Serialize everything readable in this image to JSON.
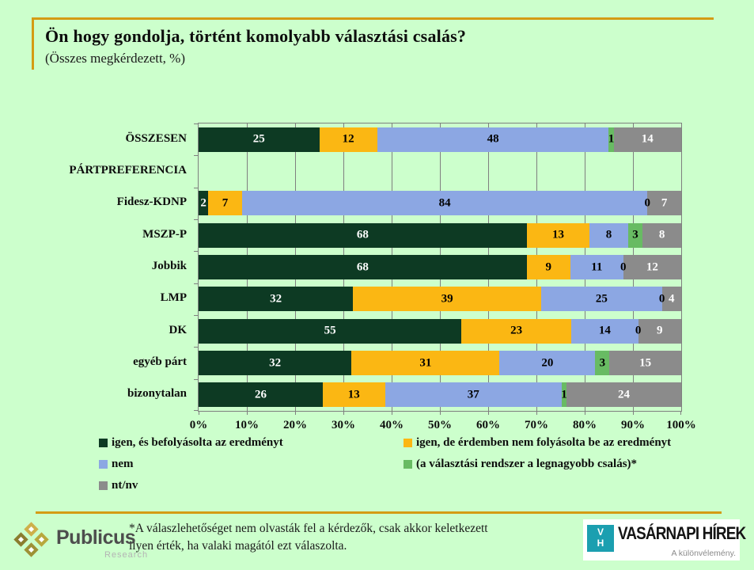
{
  "slide": {
    "title": "Ön hogy gondolja, történt komolyabb választási csalás?",
    "subtitle": "(Összes megkérdezett, %)",
    "accent_color": "#d49c14",
    "background_color": "#ccffcc"
  },
  "chart_data": {
    "type": "bar",
    "orientation": "horizontal-stacked",
    "title": "Ön hogy gondolja, történt komolyabb választási csalás?",
    "unit": "%",
    "categories": [
      "ÖSSZESEN",
      "PÁRTPREFERENCIA",
      "Fidesz-KDNP",
      "MSZP-P",
      "Jobbik",
      "LMP",
      "DK",
      "egyéb párt",
      "bizonytalan"
    ],
    "series": [
      {
        "name": "igen, és befolyásolta az eredményt",
        "color": "#0d3a23",
        "text_color": "#ffffff",
        "values": [
          25,
          null,
          2,
          68,
          68,
          32,
          55,
          32,
          26
        ]
      },
      {
        "name": "igen, de érdemben nem folyásolta be az eredményt",
        "color": "#fbb713",
        "text_color": "#000000",
        "values": [
          12,
          null,
          7,
          13,
          9,
          39,
          23,
          31,
          13
        ]
      },
      {
        "name": "nem",
        "color": "#8ca7e3",
        "text_color": "#000000",
        "values": [
          48,
          null,
          84,
          8,
          11,
          25,
          14,
          20,
          37
        ]
      },
      {
        "name": "(a választási rendszer a legnagyobb csalás)*",
        "color": "#68bb63",
        "text_color": "#000000",
        "values": [
          1,
          null,
          0,
          3,
          0,
          0,
          0,
          3,
          1
        ]
      },
      {
        "name": "nt/nv",
        "color": "#8b8b8b",
        "text_color": "#ffffff",
        "values": [
          14,
          null,
          7,
          8,
          12,
          4,
          9,
          15,
          24
        ]
      }
    ],
    "x_axis": {
      "min": 0,
      "max": 100,
      "ticks": [
        "0%",
        "10%",
        "20%",
        "30%",
        "40%",
        "50%",
        "60%",
        "70%",
        "80%",
        "90%",
        "100%"
      ]
    },
    "grid": true,
    "legend_position": "bottom"
  },
  "footnote": {
    "line1": "*A válaszlehetőséget nem olvasták fel a kérdezők, csak akkor keletkezett",
    "line2": "ilyen érték, ha valaki magától ezt válaszolta."
  },
  "logos": {
    "publicus": {
      "name": "Publicus",
      "sub": "Research",
      "diamond_colors": [
        "#cdb04a",
        "#8a7d2e",
        "#b7a83c",
        "#9d9135"
      ]
    },
    "vh": {
      "initial_top": "V",
      "initial_bottom": "H",
      "square_color": "#1b9fb0",
      "title": "VASÁRNAPI HÍREK",
      "tagline": "A különvélemény."
    }
  }
}
